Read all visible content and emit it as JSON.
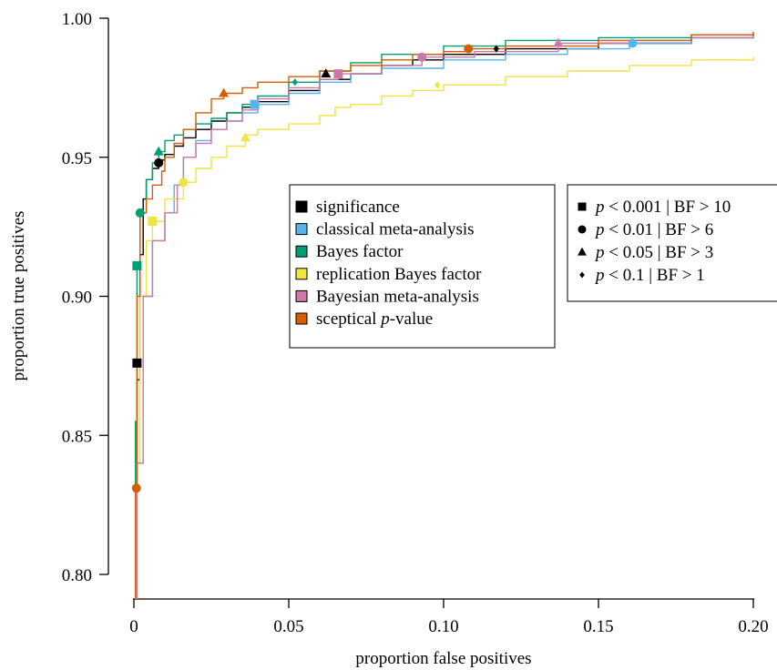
{
  "chart_data": {
    "type": "line",
    "title": "",
    "xlabel": "proportion false positives",
    "ylabel": "proportion true positives",
    "xlim": [
      0,
      0.2
    ],
    "ylim": [
      0.8,
      1.0
    ],
    "x_ticks": [
      {
        "value": 0,
        "label": "0"
      },
      {
        "value": 0.05,
        "label": "0.05"
      },
      {
        "value": 0.1,
        "label": "0.10"
      },
      {
        "value": 0.15,
        "label": "0.15"
      },
      {
        "value": 0.2,
        "label": "0.20"
      }
    ],
    "y_ticks": [
      {
        "value": 0.8,
        "label": "0.80"
      },
      {
        "value": 0.85,
        "label": "0.85"
      },
      {
        "value": 0.9,
        "label": "0.90"
      },
      {
        "value": 0.95,
        "label": "0.95"
      },
      {
        "value": 1.0,
        "label": "1.00"
      }
    ],
    "grid": false,
    "legend_methods": [
      {
        "label": "significance",
        "color": "#000000"
      },
      {
        "label": "classical meta-analysis",
        "color": "#56B4E9"
      },
      {
        "label": "Bayes factor",
        "color": "#009E73"
      },
      {
        "label": "replication Bayes factor",
        "color": "#F0E442"
      },
      {
        "label": "Bayesian meta-analysis",
        "color": "#CC79A7"
      },
      {
        "label_prefix": "sceptical ",
        "label_italic": "p",
        "label_suffix": "-value",
        "color": "#D55E00"
      }
    ],
    "legend_thresholds": [
      {
        "marker": "square",
        "p": "p",
        "text": " < 0.001 | BF > 10"
      },
      {
        "marker": "circle",
        "p": "p",
        "text": " < 0.01 | BF > 6"
      },
      {
        "marker": "triangle",
        "p": "p",
        "text": " < 0.05 | BF > 3"
      },
      {
        "marker": "diamond",
        "p": "p",
        "text": " < 0.1 | BF > 1"
      }
    ],
    "series": [
      {
        "name": "significance",
        "color": "#000000",
        "x": [
          0,
          0.0005,
          0.001,
          0.002,
          0.003,
          0.004,
          0.006,
          0.008,
          0.01,
          0.013,
          0.016,
          0.02,
          0.025,
          0.03,
          0.035,
          0.04,
          0.05,
          0.06,
          0.07,
          0.08,
          0.09,
          0.1,
          0.12,
          0.15,
          0.18,
          0.2
        ],
        "y": [
          0.79,
          0.83,
          0.87,
          0.915,
          0.935,
          0.942,
          0.946,
          0.949,
          0.951,
          0.954,
          0.957,
          0.96,
          0.963,
          0.966,
          0.968,
          0.97,
          0.974,
          0.978,
          0.98,
          0.983,
          0.985,
          0.987,
          0.989,
          0.991,
          0.993,
          0.994
        ],
        "markers": [
          {
            "shape": "square",
            "x": 0.001,
            "y": 0.876
          },
          {
            "shape": "circle",
            "x": 0.008,
            "y": 0.948
          },
          {
            "shape": "triangle",
            "x": 0.062,
            "y": 0.98
          },
          {
            "shape": "diamond",
            "x": 0.117,
            "y": 0.989
          }
        ]
      },
      {
        "name": "classical meta-analysis",
        "color": "#56B4E9",
        "x": [
          0,
          0.001,
          0.003,
          0.006,
          0.01,
          0.013,
          0.016,
          0.02,
          0.025,
          0.03,
          0.035,
          0.04,
          0.05,
          0.06,
          0.07,
          0.08,
          0.1,
          0.12,
          0.14,
          0.16,
          0.18,
          0.2
        ],
        "y": [
          0.79,
          0.84,
          0.9,
          0.92,
          0.93,
          0.94,
          0.95,
          0.956,
          0.96,
          0.963,
          0.966,
          0.969,
          0.973,
          0.977,
          0.98,
          0.982,
          0.985,
          0.987,
          0.989,
          0.991,
          0.993,
          0.994
        ],
        "markers": [
          {
            "shape": "square",
            "x": 0.039,
            "y": 0.969
          },
          {
            "shape": "circle",
            "x": 0.161,
            "y": 0.991
          }
        ]
      },
      {
        "name": "Bayes factor",
        "color": "#009E73",
        "x": [
          0,
          0.0005,
          0.001,
          0.002,
          0.004,
          0.006,
          0.008,
          0.01,
          0.013,
          0.016,
          0.02,
          0.025,
          0.03,
          0.035,
          0.04,
          0.05,
          0.06,
          0.07,
          0.08,
          0.1,
          0.12,
          0.15,
          0.18,
          0.2
        ],
        "y": [
          0.79,
          0.855,
          0.911,
          0.93,
          0.942,
          0.948,
          0.952,
          0.956,
          0.958,
          0.96,
          0.962,
          0.964,
          0.966,
          0.969,
          0.972,
          0.977,
          0.981,
          0.984,
          0.987,
          0.99,
          0.992,
          0.993,
          0.994,
          0.995
        ],
        "markers": [
          {
            "shape": "square",
            "x": 0.001,
            "y": 0.911
          },
          {
            "shape": "circle",
            "x": 0.002,
            "y": 0.93
          },
          {
            "shape": "triangle",
            "x": 0.008,
            "y": 0.952
          },
          {
            "shape": "diamond",
            "x": 0.052,
            "y": 0.977
          }
        ]
      },
      {
        "name": "replication Bayes factor",
        "color": "#F0E442",
        "x": [
          0,
          0.001,
          0.002,
          0.004,
          0.006,
          0.01,
          0.016,
          0.02,
          0.025,
          0.03,
          0.036,
          0.04,
          0.05,
          0.06,
          0.065,
          0.07,
          0.08,
          0.09,
          0.1,
          0.12,
          0.14,
          0.16,
          0.18,
          0.2
        ],
        "y": [
          0.79,
          0.84,
          0.9,
          0.92,
          0.927,
          0.935,
          0.941,
          0.946,
          0.95,
          0.954,
          0.958,
          0.96,
          0.962,
          0.965,
          0.968,
          0.969,
          0.972,
          0.974,
          0.976,
          0.979,
          0.981,
          0.983,
          0.985,
          0.986
        ],
        "markers": [
          {
            "shape": "square",
            "x": 0.006,
            "y": 0.927
          },
          {
            "shape": "circle",
            "x": 0.016,
            "y": 0.941
          },
          {
            "shape": "triangle",
            "x": 0.036,
            "y": 0.957
          },
          {
            "shape": "diamond",
            "x": 0.098,
            "y": 0.976
          }
        ]
      },
      {
        "name": "Bayesian meta-analysis",
        "color": "#CC79A7",
        "x": [
          0,
          0.001,
          0.003,
          0.006,
          0.01,
          0.014,
          0.016,
          0.02,
          0.025,
          0.03,
          0.035,
          0.04,
          0.05,
          0.06,
          0.066,
          0.08,
          0.093,
          0.11,
          0.137,
          0.16,
          0.18,
          0.2
        ],
        "y": [
          0.79,
          0.84,
          0.9,
          0.92,
          0.93,
          0.94,
          0.95,
          0.955,
          0.96,
          0.963,
          0.967,
          0.971,
          0.975,
          0.978,
          0.98,
          0.983,
          0.986,
          0.988,
          0.991,
          0.992,
          0.993,
          0.994
        ],
        "markers": [
          {
            "shape": "square",
            "x": 0.066,
            "y": 0.98
          },
          {
            "shape": "circle",
            "x": 0.093,
            "y": 0.986
          },
          {
            "shape": "triangle",
            "x": 0.137,
            "y": 0.991
          }
        ]
      },
      {
        "name": "sceptical p-value",
        "color": "#D55E00",
        "x": [
          0,
          0.0005,
          0.001,
          0.002,
          0.004,
          0.006,
          0.009,
          0.01,
          0.013,
          0.016,
          0.02,
          0.025,
          0.029,
          0.035,
          0.04,
          0.05,
          0.06,
          0.07,
          0.08,
          0.09,
          0.1,
          0.108,
          0.12,
          0.15,
          0.18,
          0.2
        ],
        "y": [
          0.79,
          0.831,
          0.9,
          0.93,
          0.935,
          0.94,
          0.945,
          0.95,
          0.955,
          0.96,
          0.966,
          0.971,
          0.973,
          0.975,
          0.977,
          0.979,
          0.981,
          0.983,
          0.985,
          0.987,
          0.988,
          0.989,
          0.99,
          0.992,
          0.994,
          0.995
        ],
        "markers": [
          {
            "shape": "circle",
            "x": 0.0008,
            "y": 0.831
          },
          {
            "shape": "triangle",
            "x": 0.029,
            "y": 0.973
          },
          {
            "shape": "circle",
            "x": 0.108,
            "y": 0.989
          }
        ]
      }
    ]
  }
}
